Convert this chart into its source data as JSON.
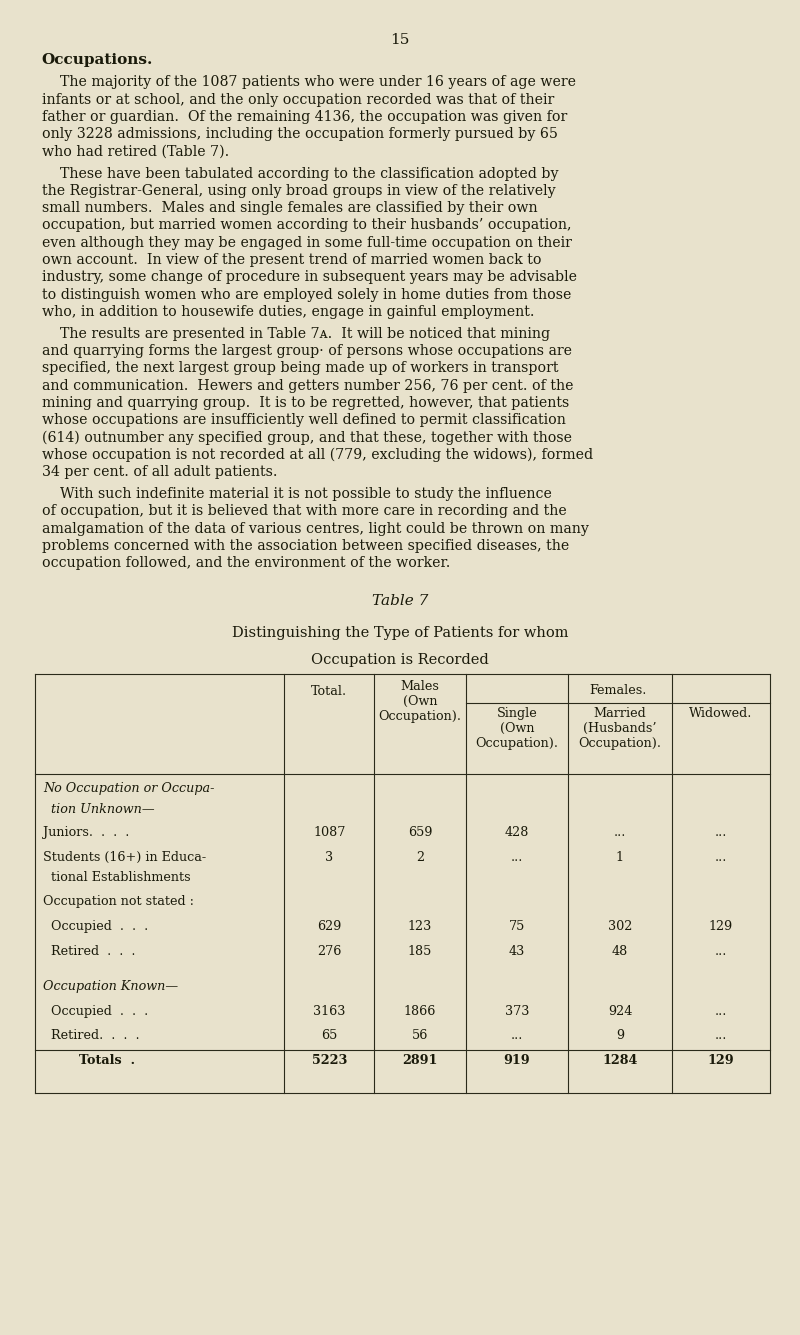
{
  "background_color": "#e8e2cc",
  "page_number": "15",
  "section_title": "Occupations.",
  "paragraphs": [
    "    The majority of the 1087 patients who were under 16 years of age were\ninfants or at school, and the only occupation recorded was that of their\nfather or guardian.  Of the remaining 4136, the occupation was given for\nonly 3228 admissions, including the occupation formerly pursued by 65\nwho had retired (Table 7).",
    "    These have been tabulated according to the classification adopted by\nthe Registrar-General, using only broad groups in view of the relatively\nsmall numbers.  Males and single females are classified by their own\noccupation, but married women according to their husbands’ occupation,\neven although they may be engaged in some full-time occupation on their\nown account.  In view of the present trend of married women back to\nindustry, some change of procedure in subsequent years may be advisable\nto distinguish women who are employed solely in home duties from those\nwho, in addition to housewife duties, engage in gainful employment.",
    "    The results are presented in Table 7ᴀ.  It will be noticed that mining\nand quarrying forms the largest group· of persons whose occupations are\nspecified, the next largest group being made up of workers in transport\nand communication.  Hewers and getters number 256, 76 per cent. of the\nmining and quarrying group.  It is to be regretted, however, that patients\nwhose occupations are insufficiently well defined to permit classification\n(614) outnumber any specified group, and that these, together with those\nwhose occupation is not recorded at all (779, excluding the widows), formed\n34 per cent. of all adult patients.",
    "    With such indefinite material it is not possible to study the influence\nof occupation, but it is believed that with more care in recording and the\namalgamation of the data of various centres, light could be thrown on many\nproblems concerned with the association between specified diseases, the\noccupation followed, and the environment of the worker."
  ],
  "table_title": "Table 7",
  "table_subtitle_line1": "Distinguishing the Type of Patients for whom",
  "table_subtitle_line2": "Occupation is Recorded",
  "rows": [
    {
      "label1": "No Occupation or Occupa-",
      "label2": "  tion Unknown—",
      "italic": true,
      "values": [
        "",
        "",
        "",
        "",
        ""
      ]
    },
    {
      "label1": "Juniors.  .  .  .",
      "label2": null,
      "italic": false,
      "values": [
        "1087",
        "659",
        "428",
        "...",
        "..."
      ]
    },
    {
      "label1": "Students (16+) in Educa-",
      "label2": "  tional Establishments",
      "italic": false,
      "values": [
        "3",
        "2",
        "...",
        "1",
        "..."
      ]
    },
    {
      "label1": "Occupation not stated :",
      "label2": null,
      "italic": false,
      "values": [
        "",
        "",
        "",
        "",
        ""
      ]
    },
    {
      "label1": "  Occupied  .  .  .",
      "label2": null,
      "italic": false,
      "values": [
        "629",
        "123",
        "75",
        "302",
        "129"
      ]
    },
    {
      "label1": "  Retired  .  .  .",
      "label2": null,
      "italic": false,
      "values": [
        "276",
        "185",
        "43",
        "48",
        "..."
      ]
    },
    {
      "label1": "Occupation Known—",
      "label2": null,
      "italic": true,
      "values": [
        "",
        "",
        "",
        "",
        ""
      ]
    },
    {
      "label1": "  Occupied  .  .  .",
      "label2": null,
      "italic": false,
      "values": [
        "3163",
        "1866",
        "373",
        "924",
        "..."
      ]
    },
    {
      "label1": "  Retired.  .  .  .",
      "label2": null,
      "italic": false,
      "values": [
        "65",
        "56",
        "...",
        "9",
        "..."
      ]
    },
    {
      "label1": "        Totals  .",
      "label2": null,
      "italic": false,
      "is_total": true,
      "values": [
        "5223",
        "2891",
        "919",
        "1284",
        "129"
      ]
    }
  ]
}
